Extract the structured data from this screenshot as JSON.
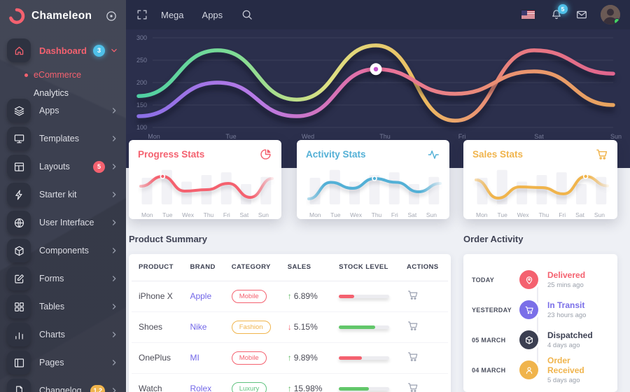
{
  "brand": {
    "name": "Chameleon"
  },
  "sidebar": {
    "dashboard": {
      "label": "Dashboard",
      "icon": "home-icon",
      "badge": "3",
      "badge_color": "#4fc0e8",
      "children": [
        {
          "label": "eCommerce",
          "active": true
        },
        {
          "label": "Analytics",
          "active": false
        }
      ]
    },
    "items": [
      {
        "label": "Apps",
        "icon": "layers-icon"
      },
      {
        "label": "Templates",
        "icon": "monitor-icon"
      },
      {
        "label": "Layouts",
        "icon": "layout-icon",
        "badge": "5",
        "badge_color": "#f4616f"
      },
      {
        "label": "Starter kit",
        "icon": "zap-icon"
      },
      {
        "label": "User Interface",
        "icon": "globe-icon"
      },
      {
        "label": "Components",
        "icon": "cube-icon"
      },
      {
        "label": "Forms",
        "icon": "edit-icon"
      },
      {
        "label": "Tables",
        "icon": "grid-icon"
      },
      {
        "label": "Charts",
        "icon": "bar-chart-icon"
      },
      {
        "label": "Pages",
        "icon": "pages-icon"
      },
      {
        "label": "Changelog",
        "icon": "file-icon",
        "badge": "1.2",
        "badge_color": "#f0b44c"
      }
    ]
  },
  "topbar": {
    "menu": [
      {
        "label": "Mega"
      },
      {
        "label": "Apps"
      }
    ],
    "bell_badge": "5"
  },
  "main_chart": {
    "type": "line",
    "x": [
      "Mon",
      "Tue",
      "Wed",
      "Thu",
      "Fri",
      "Sat",
      "Sun"
    ],
    "yticks": [
      300,
      250,
      200,
      150,
      100
    ],
    "ylim": [
      100,
      300
    ],
    "grid": true,
    "series": [
      {
        "name": "series-a",
        "values": [
          170,
          272,
          162,
          283,
          115,
          272,
          220
        ],
        "gradient": [
          "#4ecfa3",
          "#7edb95",
          "#dee083",
          "#ecbb60",
          "#e87a80",
          "#e0658f"
        ]
      },
      {
        "name": "series-b",
        "values": [
          125,
          200,
          125,
          230,
          175,
          225,
          150
        ],
        "gradient": [
          "#8a6fe6",
          "#b77ae6",
          "#e86e9d",
          "#ea8f74",
          "#e8a55e"
        ]
      }
    ],
    "marker": {
      "series": 1,
      "index": 3,
      "ring": "#ffffff",
      "dot": "#c150c9"
    }
  },
  "stat_cards": [
    {
      "title": "Progress Stats",
      "accent": "#f4616f",
      "icon": "pie-chart-icon",
      "days": [
        "Mon",
        "Tue",
        "Wex",
        "Thu",
        "Fri",
        "Sat",
        "Sun"
      ],
      "line_pct": [
        44,
        72,
        30,
        34,
        52,
        12,
        66
      ],
      "marker_index": 1,
      "bars_pct": [
        68,
        88,
        58,
        75,
        82,
        52,
        70
      ]
    },
    {
      "title": "Activity Stats",
      "accent": "#53b0d6",
      "icon": "activity-icon",
      "days": [
        "Mon",
        "Tue",
        "Wex",
        "Thu",
        "Fri",
        "Sat",
        "Sun"
      ],
      "line_pct": [
        8,
        55,
        38,
        66,
        55,
        28,
        52
      ],
      "marker_index": 3,
      "bars_pct": [
        68,
        88,
        58,
        75,
        82,
        52,
        70
      ]
    },
    {
      "title": "Sales Stats",
      "accent": "#f0b44c",
      "icon": "cart-icon",
      "days": [
        "Mon",
        "Tue",
        "Wex",
        "Thu",
        "Fri",
        "Sat",
        "Sun"
      ],
      "line_pct": [
        62,
        10,
        42,
        40,
        22,
        72,
        45
      ],
      "marker_index": 5,
      "bars_pct": [
        68,
        88,
        58,
        75,
        82,
        52,
        70
      ]
    }
  ],
  "product_summary": {
    "title": "Product Summary",
    "headers": [
      "PRODUCT",
      "BRAND",
      "CATEGORY",
      "SALES",
      "STOCK LEVEL",
      "ACTIONS"
    ],
    "rows": [
      {
        "product": "iPhone X",
        "brand": "Apple",
        "category": "Mobile",
        "category_color": "#f4616f",
        "trend": "up",
        "sales": "6.89%",
        "stock_pct": 30,
        "stock_color": "#f4616f"
      },
      {
        "product": "Shoes",
        "brand": "Nike",
        "category": "Fashion",
        "category_color": "#f0b44c",
        "trend": "down",
        "sales": "5.15%",
        "stock_pct": 72,
        "stock_color": "#62c76a"
      },
      {
        "product": "OnePlus",
        "brand": "MI",
        "category": "Mobile",
        "category_color": "#f4616f",
        "trend": "up",
        "sales": "9.89%",
        "stock_pct": 46,
        "stock_color": "#f4616f"
      },
      {
        "product": "Watch",
        "brand": "Rolex",
        "category": "Luxury",
        "category_color": "#5fc27e",
        "trend": "up",
        "sales": "15.98%",
        "stock_pct": 60,
        "stock_color": "#62c76a"
      }
    ]
  },
  "order_activity": {
    "title": "Order Activity",
    "items": [
      {
        "date": "TODAY",
        "status": "Delivered",
        "time": "25 mins ago",
        "color": "#f4616f",
        "icon": "map-pin-icon"
      },
      {
        "date": "YESTERDAY",
        "status": "In Transit",
        "time": "23 hours ago",
        "color": "#7a6fe8",
        "icon": "cart-icon"
      },
      {
        "date": "05 MARCH",
        "status": "Dispatched",
        "time": "4 days ago",
        "color": "#3b3f51",
        "icon": "package-icon"
      },
      {
        "date": "04 MARCH",
        "status": "Order Received",
        "time": "5 days ago",
        "color": "#f0b44c",
        "icon": "user-icon"
      }
    ]
  },
  "colors": {
    "up": "#5cb860",
    "down": "#f4616f",
    "cyan": "#4fc0e8"
  }
}
